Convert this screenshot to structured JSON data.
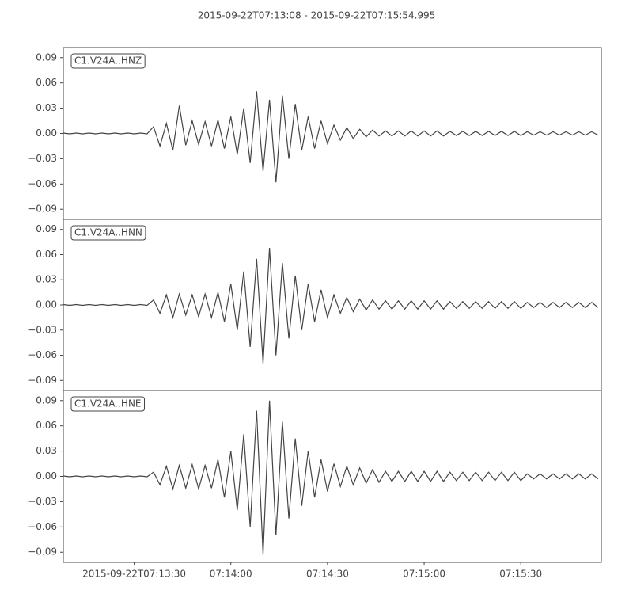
{
  "chart_data": {
    "type": "line",
    "title": "2015-09-22T07:13:08  -  2015-09-22T07:15:54.995",
    "x": [
      0,
      2,
      4,
      6,
      8,
      10,
      12,
      14,
      16,
      18,
      20,
      22,
      24,
      26,
      28,
      30,
      32,
      34,
      36,
      38,
      40,
      42,
      44,
      46,
      48,
      50,
      52,
      54,
      56,
      58,
      60,
      62,
      64,
      66,
      68,
      70,
      72,
      74,
      76,
      78,
      80,
      82,
      84,
      86,
      88,
      90,
      92,
      94,
      96,
      98,
      100,
      102,
      104,
      106,
      108,
      110,
      112,
      114,
      116,
      118,
      120,
      122,
      124,
      126,
      128,
      130,
      132,
      134,
      136,
      138,
      140,
      142,
      144,
      146,
      148,
      150,
      152,
      154,
      156,
      158,
      160,
      162,
      164,
      166
    ],
    "xlim": [
      0,
      166.995
    ],
    "xticks": [
      {
        "value": 22,
        "label": "2015-09-22T07:13:30"
      },
      {
        "value": 52,
        "label": "07:14:00"
      },
      {
        "value": 82,
        "label": "07:14:30"
      },
      {
        "value": 112,
        "label": "07:15:00"
      },
      {
        "value": 142,
        "label": "07:15:30"
      }
    ],
    "ylim": [
      -0.102,
      0.102
    ],
    "yticks": [
      {
        "value": 0.09,
        "label": "0.09"
      },
      {
        "value": 0.06,
        "label": "0.06"
      },
      {
        "value": 0.03,
        "label": "0.03"
      },
      {
        "value": 0,
        "label": "0.00"
      },
      {
        "value": -0.03,
        "label": "−0.03"
      },
      {
        "value": -0.06,
        "label": "−0.06"
      },
      {
        "value": -0.09,
        "label": "−0.09"
      }
    ],
    "series": [
      {
        "name": "C1.V24A..HNZ",
        "color": "#444444",
        "values": [
          0.0005,
          -0.0005,
          0.0005,
          -0.0005,
          0.0005,
          -0.0005,
          0.0005,
          -0.0005,
          0.0005,
          -0.0005,
          0.0005,
          -0.0005,
          0.0005,
          -0.0005,
          0.008,
          -0.015,
          0.012,
          -0.02,
          0.033,
          -0.014,
          0.015,
          -0.013,
          0.014,
          -0.015,
          0.016,
          -0.018,
          0.02,
          -0.025,
          0.03,
          -0.035,
          0.05,
          -0.045,
          0.04,
          -0.058,
          0.045,
          -0.03,
          0.035,
          -0.02,
          0.02,
          -0.018,
          0.015,
          -0.012,
          0.01,
          -0.008,
          0.007,
          -0.006,
          0.005,
          -0.004,
          0.004,
          -0.003,
          0.003,
          -0.003,
          0.003,
          -0.003,
          0.003,
          -0.003,
          0.003,
          -0.003,
          0.003,
          -0.003,
          0.0025,
          -0.0025,
          0.0025,
          -0.0025,
          0.0025,
          -0.0025,
          0.0025,
          -0.0025,
          0.0025,
          -0.0025,
          0.0025,
          -0.0025,
          0.002,
          -0.002,
          0.002,
          -0.002,
          0.002,
          -0.002,
          0.002,
          -0.002,
          0.002,
          -0.002,
          0.002,
          -0.002
        ]
      },
      {
        "name": "C1.V24A..HNN",
        "color": "#444444",
        "values": [
          0.0005,
          -0.0005,
          0.0005,
          -0.0005,
          0.0005,
          -0.0005,
          0.0005,
          -0.0005,
          0.0005,
          -0.0005,
          0.0005,
          -0.0005,
          0.0005,
          -0.0005,
          0.006,
          -0.01,
          0.012,
          -0.015,
          0.013,
          -0.012,
          0.012,
          -0.014,
          0.013,
          -0.015,
          0.015,
          -0.02,
          0.025,
          -0.03,
          0.04,
          -0.05,
          0.055,
          -0.07,
          0.068,
          -0.06,
          0.05,
          -0.04,
          0.035,
          -0.03,
          0.025,
          -0.02,
          0.018,
          -0.015,
          0.012,
          -0.01,
          0.009,
          -0.008,
          0.007,
          -0.006,
          0.006,
          -0.005,
          0.005,
          -0.005,
          0.005,
          -0.005,
          0.005,
          -0.005,
          0.005,
          -0.005,
          0.005,
          -0.005,
          0.004,
          -0.004,
          0.004,
          -0.004,
          0.004,
          -0.004,
          0.004,
          -0.004,
          0.004,
          -0.004,
          0.004,
          -0.004,
          0.003,
          -0.003,
          0.003,
          -0.003,
          0.003,
          -0.003,
          0.003,
          -0.003,
          0.003,
          -0.003,
          0.003,
          -0.003
        ]
      },
      {
        "name": "C1.V24A..HNE",
        "color": "#444444",
        "values": [
          0.0005,
          -0.0005,
          0.0005,
          -0.0005,
          0.0005,
          -0.0005,
          0.0005,
          -0.0005,
          0.0005,
          -0.0005,
          0.0005,
          -0.0005,
          0.0005,
          -0.0005,
          0.005,
          -0.01,
          0.012,
          -0.015,
          0.013,
          -0.014,
          0.014,
          -0.015,
          0.013,
          -0.014,
          0.02,
          -0.025,
          0.03,
          -0.04,
          0.05,
          -0.06,
          0.078,
          -0.093,
          0.09,
          -0.07,
          0.065,
          -0.05,
          0.045,
          -0.035,
          0.03,
          -0.025,
          0.02,
          -0.018,
          0.015,
          -0.012,
          0.012,
          -0.01,
          0.01,
          -0.008,
          0.008,
          -0.007,
          0.006,
          -0.006,
          0.006,
          -0.006,
          0.006,
          -0.006,
          0.006,
          -0.006,
          0.006,
          -0.006,
          0.005,
          -0.005,
          0.005,
          -0.005,
          0.005,
          -0.005,
          0.005,
          -0.005,
          0.005,
          -0.005,
          0.005,
          -0.005,
          0.003,
          -0.003,
          0.003,
          -0.003,
          0.003,
          -0.003,
          0.003,
          -0.003,
          0.003,
          -0.003,
          0.003,
          -0.003
        ]
      }
    ]
  }
}
